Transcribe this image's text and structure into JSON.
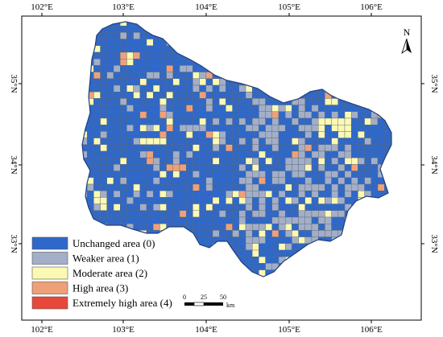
{
  "map": {
    "lon_ticks": [
      "102°E",
      "103°E",
      "104°E",
      "105°E",
      "106°E"
    ],
    "lat_ticks": [
      "35°N",
      "34°N",
      "33°N"
    ],
    "north_label": "N",
    "colors": {
      "frame": "#000000",
      "grid_line": "#5b6675",
      "unchanged": "#2f68c8",
      "weaker": "#a3aec7",
      "moderate": "#fbf9b3",
      "high": "#f0a078",
      "extreme": "#e8473c"
    }
  },
  "legend": {
    "items": [
      {
        "label": "Unchanged area (0)",
        "color": "#2f68c8"
      },
      {
        "label": "Weaker area (1)",
        "color": "#a3aec7"
      },
      {
        "label": "Moderate area (2)",
        "color": "#fbf9b3"
      },
      {
        "label": "High area (3)",
        "color": "#f0a078"
      },
      {
        "label": "Extremely high area (4)",
        "color": "#e8473c"
      }
    ]
  },
  "scale_bar": {
    "labels": [
      "0",
      "25",
      "50"
    ],
    "unit": "km"
  }
}
